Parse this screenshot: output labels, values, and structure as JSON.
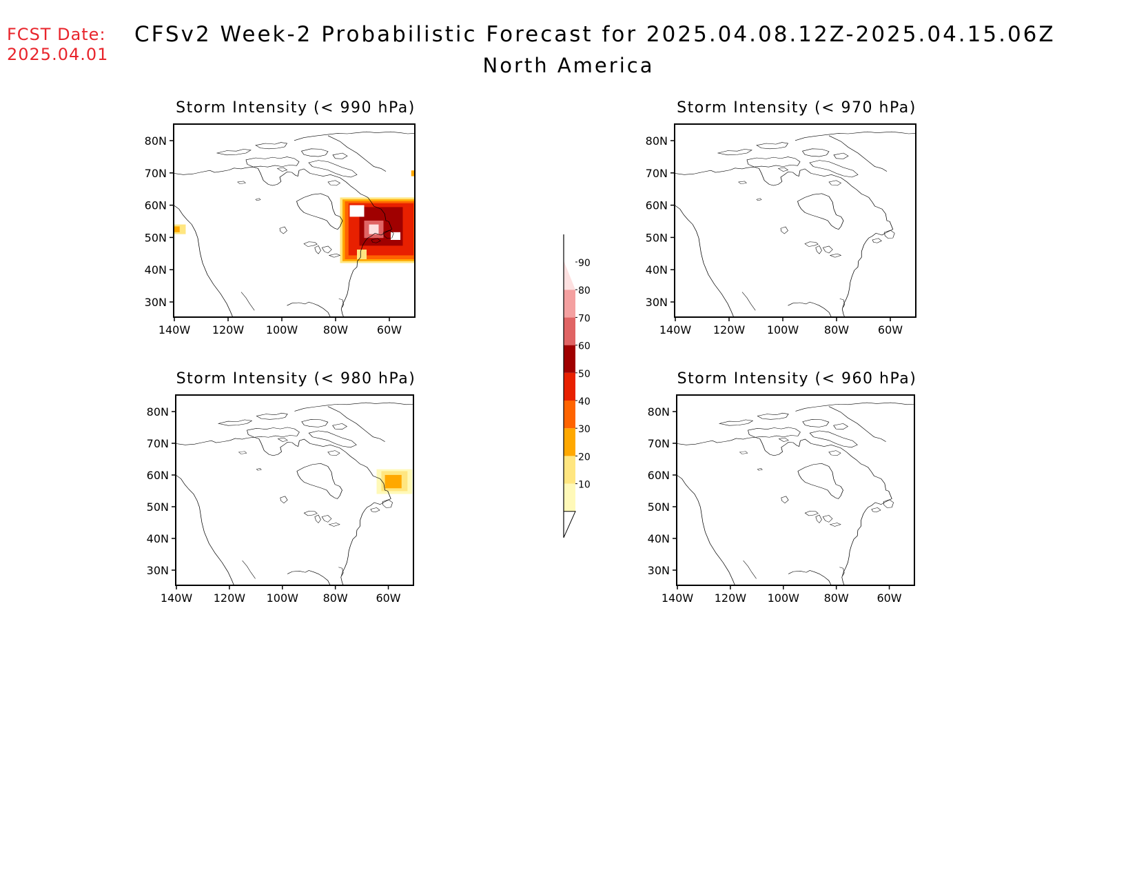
{
  "header": {
    "fcst_label": "FCST Date:",
    "fcst_date": "2025.04.01",
    "title": "CFSv2 Week-2 Probabilistic Forecast for 2025.04.08.12Z-2025.04.15.06Z",
    "subtitle": "North America"
  },
  "colors": {
    "fcst_text": "#e8242b",
    "levels": [
      "#fff9b8",
      "#ffe680",
      "#ffa800",
      "#ff6400",
      "#e82000",
      "#a00000",
      "#e06464",
      "#f4a0a0",
      "#fde0e0"
    ]
  },
  "colorbar": {
    "labels": [
      "10",
      "20",
      "30",
      "40",
      "50",
      "60",
      "70",
      "80",
      "90"
    ]
  },
  "axes": {
    "lat_labels": [
      "80N",
      "70N",
      "60N",
      "50N",
      "40N",
      "30N"
    ],
    "lon_labels": [
      "140W",
      "120W",
      "100W",
      "80W",
      "60W"
    ]
  },
  "panels": [
    {
      "id": "p990",
      "title": "Storm Intensity (< 990 hPa)",
      "has_data": true
    },
    {
      "id": "p970",
      "title": "Storm Intensity (< 970 hPa)",
      "has_data": false
    },
    {
      "id": "p980",
      "title": "Storm Intensity (< 980 hPa)",
      "has_data": true
    },
    {
      "id": "p960",
      "title": "Storm Intensity (< 960 hPa)",
      "has_data": false
    }
  ]
}
